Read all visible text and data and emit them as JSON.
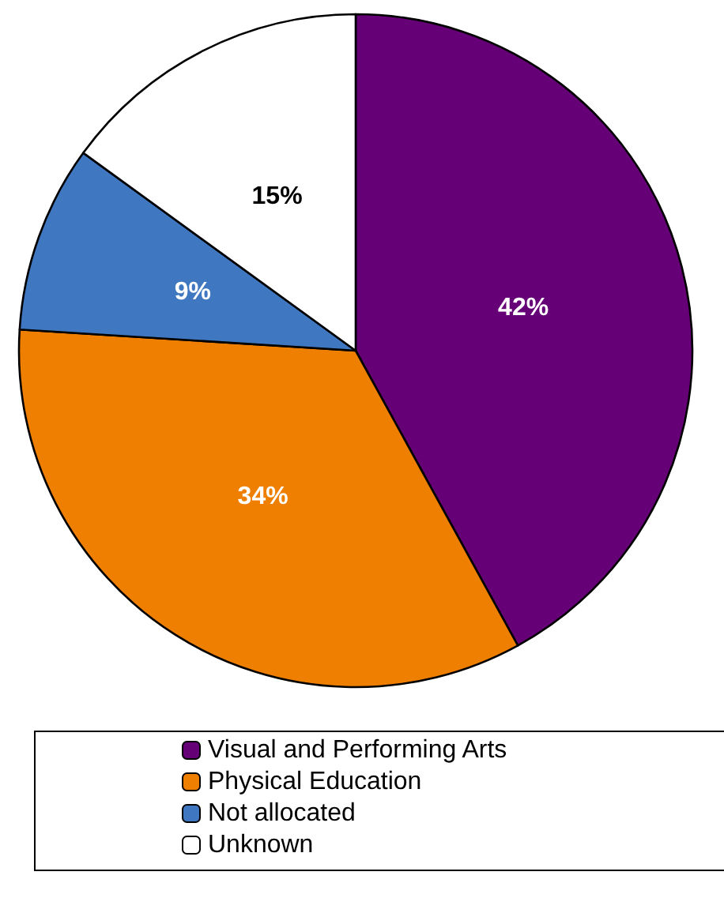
{
  "chart_data": {
    "type": "pie",
    "categories": [
      "Visual and Performing Arts",
      "Physical Education",
      "Not allocated",
      "Unknown"
    ],
    "values": [
      42,
      34,
      9,
      15
    ],
    "colors": [
      "#660077",
      "#ee7f00",
      "#3f78c0",
      "#ffffff"
    ],
    "value_labels": [
      "42%",
      "34%",
      "9%",
      "15%"
    ],
    "legend": "bottom"
  }
}
